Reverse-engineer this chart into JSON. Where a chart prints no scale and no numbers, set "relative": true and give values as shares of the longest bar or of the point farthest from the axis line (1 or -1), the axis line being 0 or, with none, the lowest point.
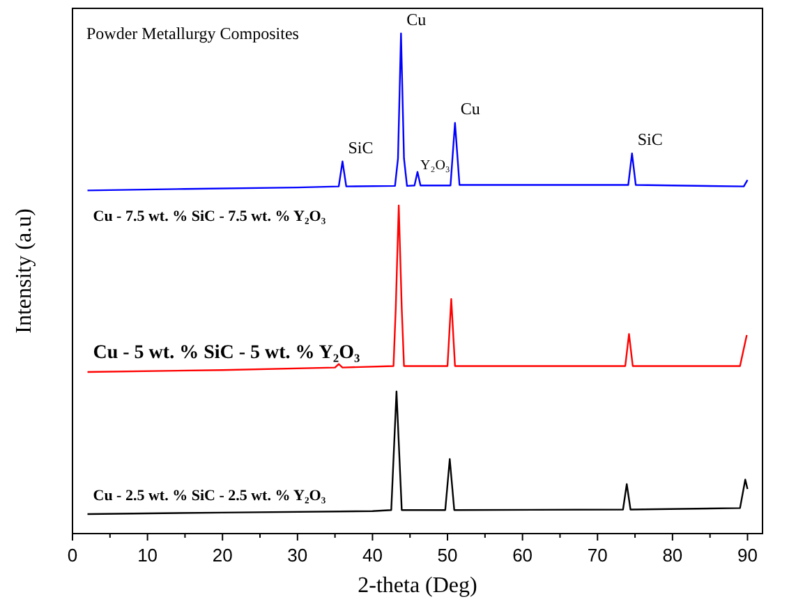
{
  "chart_data": {
    "type": "line",
    "relative": true,
    "xlabel": "2-theta (Deg)",
    "ylabel": "Intensity (a.u)",
    "xlim": [
      0,
      92
    ],
    "xticks": [
      0,
      {
        "value": 5,
        "label": null
      },
      10,
      {
        "value": 15,
        "label": null
      },
      20,
      {
        "value": 25,
        "label": null
      },
      30,
      {
        "value": 35,
        "label": null
      },
      40,
      {
        "value": 45,
        "label": null
      },
      50,
      {
        "value": 55,
        "label": null
      },
      60,
      {
        "value": 65,
        "label": null
      },
      70,
      {
        "value": 75,
        "label": null
      },
      80,
      {
        "value": 85,
        "label": null
      },
      90
    ],
    "grid": false,
    "legend": false,
    "marker": "none",
    "line_style": "solid",
    "annotations": [
      "Powder Metallurgy Composites",
      {
        "text": "SiC",
        "x": 36.0,
        "y": 0.744
      },
      {
        "text": "Cu",
        "x": 43.8,
        "y": 1.0
      },
      {
        "text": "Y₂O₃",
        "x": 46.0,
        "y": 0.723
      },
      {
        "text": "Cu",
        "x": 51.0,
        "y": 0.821
      },
      {
        "text": "SiC",
        "x": 74.6,
        "y": 0.76
      }
    ],
    "series": [
      {
        "name": "Cu - 7.5 wt. % SiC - 7.5 wt. % Y₂O₃",
        "color": "#0000ff",
        "x": [
          2,
          15,
          30,
          35.5,
          36.0,
          36.5,
          43,
          43.4,
          43.8,
          44.2,
          44.6,
          45.6,
          46.0,
          46.4,
          50.4,
          51.0,
          51.6,
          74.1,
          74.6,
          75.1,
          89.5,
          90
        ],
        "values": [
          0.686,
          0.689,
          0.692,
          0.694,
          0.744,
          0.694,
          0.695,
          0.75,
          1.0,
          0.75,
          0.695,
          0.696,
          0.723,
          0.696,
          0.696,
          0.821,
          0.697,
          0.697,
          0.76,
          0.697,
          0.694,
          0.707
        ]
      },
      {
        "name": "Cu - 5 wt. % SiC - 5 wt. % Y₂O₃",
        "color": "#ff0000",
        "x": [
          2,
          20,
          35,
          35.5,
          36,
          42.8,
          43.1,
          43.5,
          43.9,
          44.2,
          50,
          50.5,
          51,
          73.7,
          74.2,
          74.7,
          89,
          89.9
        ],
        "values": [
          0.323,
          0.327,
          0.332,
          0.339,
          0.332,
          0.335,
          0.45,
          0.656,
          0.45,
          0.335,
          0.335,
          0.469,
          0.335,
          0.335,
          0.399,
          0.335,
          0.335,
          0.397
        ]
      },
      {
        "name": "Cu - 2.5 wt. % SiC - 2.5 wt. % Y₂O₃",
        "color": "#000000",
        "x": [
          2,
          20,
          40,
          42.5,
          43.2,
          43.9,
          49.7,
          50.3,
          50.9,
          73.4,
          73.9,
          74.4,
          89,
          89.7,
          90
        ],
        "values": [
          0.039,
          0.042,
          0.045,
          0.047,
          0.284,
          0.047,
          0.047,
          0.149,
          0.047,
          0.048,
          0.099,
          0.048,
          0.051,
          0.108,
          0.089
        ]
      }
    ]
  }
}
